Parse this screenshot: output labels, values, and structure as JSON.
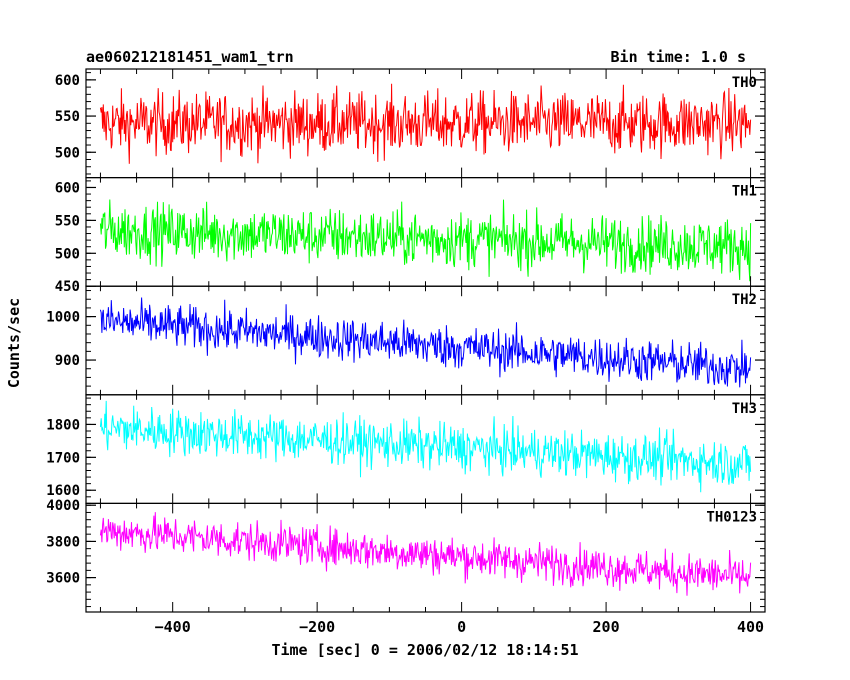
{
  "header": {
    "title": "ae060212181451_wam1_trn",
    "bin_time": "Bin time: 1.0 s"
  },
  "chart_data": {
    "type": "line",
    "title": "ae060212181451_wam1_trn",
    "xlabel": "Time [sec] 0 = 2006/02/12 18:14:51",
    "ylabel": "Counts/sec",
    "xlim": [
      -520,
      420
    ],
    "x_ticks": [
      -400,
      -200,
      0,
      200,
      400
    ],
    "x_start": -500,
    "x_end": 400,
    "bin": 1.0,
    "grid": false,
    "panels": [
      {
        "name": "TH0",
        "color": "#ff0000",
        "ylim": [
          465,
          615
        ],
        "y_ticks": [
          500,
          550,
          600
        ],
        "trend_start": 540,
        "trend_end": 540,
        "noise": 30
      },
      {
        "name": "TH1",
        "color": "#00ff00",
        "ylim": [
          450,
          615
        ],
        "y_ticks": [
          450,
          500,
          550,
          600
        ],
        "trend_start": 535,
        "trend_end": 510,
        "noise": 30
      },
      {
        "name": "TH2",
        "color": "#0000ff",
        "ylim": [
          820,
          1070
        ],
        "y_ticks": [
          900,
          1000
        ],
        "trend_start": 990,
        "trend_end": 880,
        "noise": 35
      },
      {
        "name": "TH3",
        "color": "#00ffff",
        "ylim": [
          1560,
          1890
        ],
        "y_ticks": [
          1600,
          1700,
          1800
        ],
        "trend_start": 1790,
        "trend_end": 1680,
        "noise": 50
      },
      {
        "name": "TH0123",
        "color": "#ff00ff",
        "ylim": [
          3410,
          4010
        ],
        "y_ticks": [
          3600,
          3800,
          4000
        ],
        "trend_start": 3860,
        "trend_end": 3600,
        "noise": 75
      }
    ]
  }
}
